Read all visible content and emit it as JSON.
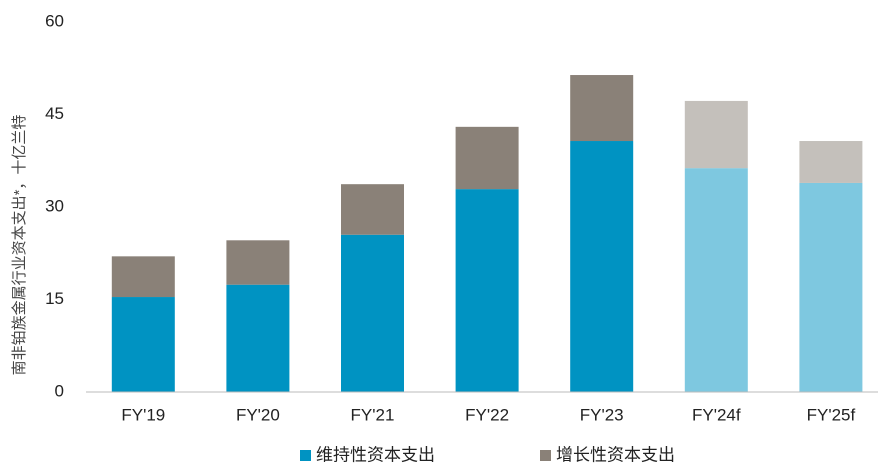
{
  "chart_data": {
    "type": "stacked_bar",
    "y_label": "南非铂族金属行业资本支出*，十亿兰特",
    "categories": [
      "FY'19",
      "FY'20",
      "FY'21",
      "FY'22",
      "FY'23",
      "FY'24f",
      "FY'25f"
    ],
    "series": [
      {
        "name": "维持性资本支出",
        "color": "#0093c2",
        "colors": [
          "#0093c2",
          "#0093c2",
          "#0093c2",
          "#0093c2",
          "#0093c2",
          "#7ec8e0",
          "#7ec8e0"
        ],
        "values": [
          15.4,
          17.4,
          25.5,
          32.9,
          40.7,
          36.3,
          33.9
        ]
      },
      {
        "name": "增长性资本支出",
        "color": "#8a8178",
        "colors": [
          "#8a8178",
          "#8a8178",
          "#8a8178",
          "#8a8178",
          "#8a8178",
          "#c4c0bb",
          "#c4c0bb"
        ],
        "values": [
          6.6,
          7.2,
          8.2,
          10.1,
          10.7,
          10.9,
          6.8
        ]
      }
    ],
    "ylim": [
      0,
      60
    ],
    "yticks": [
      0,
      15,
      30,
      45,
      60
    ],
    "grid": false,
    "legend": "bottom"
  }
}
